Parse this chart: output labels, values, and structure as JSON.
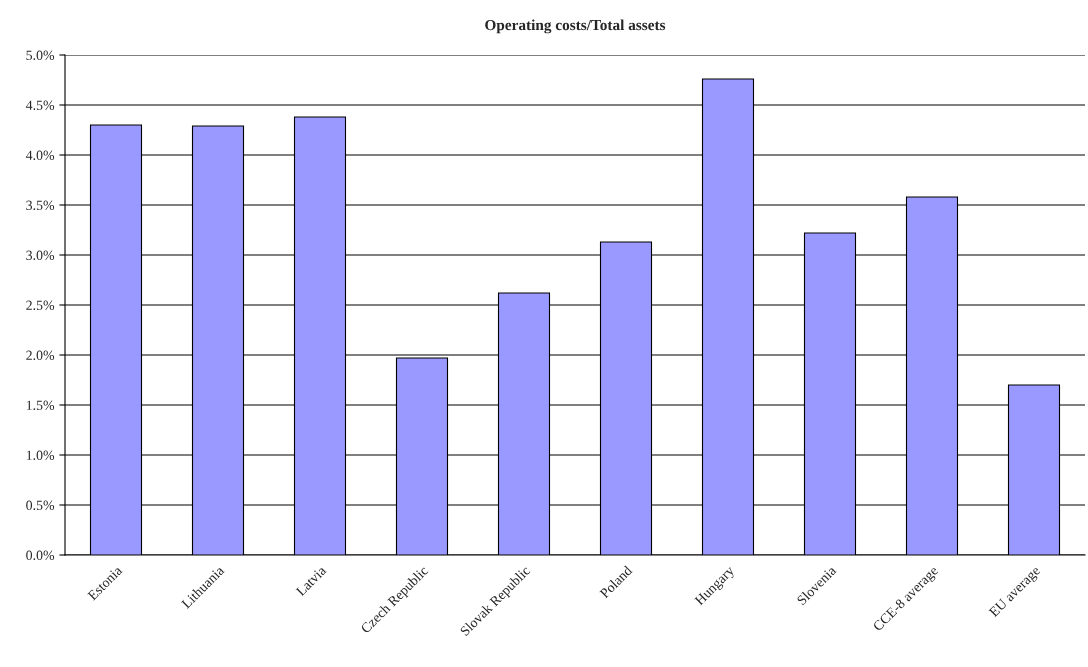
{
  "chart_data": {
    "type": "bar",
    "title": "Operating costs/Total assets",
    "categories": [
      "Estonia",
      "Lithuania",
      "Latvia",
      "Czech Republic",
      "Slovak Republic",
      "Poland",
      "Hungary",
      "Slovenia",
      "CCE-8 average",
      "EU average"
    ],
    "values": [
      4.3,
      4.29,
      4.38,
      1.97,
      2.62,
      3.13,
      4.76,
      3.22,
      3.58,
      1.7
    ],
    "color": "#9999ff",
    "ylim": [
      0,
      5
    ],
    "yticks": [
      {
        "value": 0,
        "label": "0.0%"
      },
      {
        "value": 0.5,
        "label": "0.5%"
      },
      {
        "value": 1,
        "label": "1.0%"
      },
      {
        "value": 1.5,
        "label": "1.5%"
      },
      {
        "value": 2,
        "label": "2.0%"
      },
      {
        "value": 2.5,
        "label": "2.5%"
      },
      {
        "value": 3,
        "label": "3.0%"
      },
      {
        "value": 3.5,
        "label": "3.5%"
      },
      {
        "value": 4,
        "label": "4.0%"
      },
      {
        "value": 4.5,
        "label": "4.5%"
      },
      {
        "value": 5,
        "label": "5.0%"
      }
    ],
    "grid": "y"
  }
}
